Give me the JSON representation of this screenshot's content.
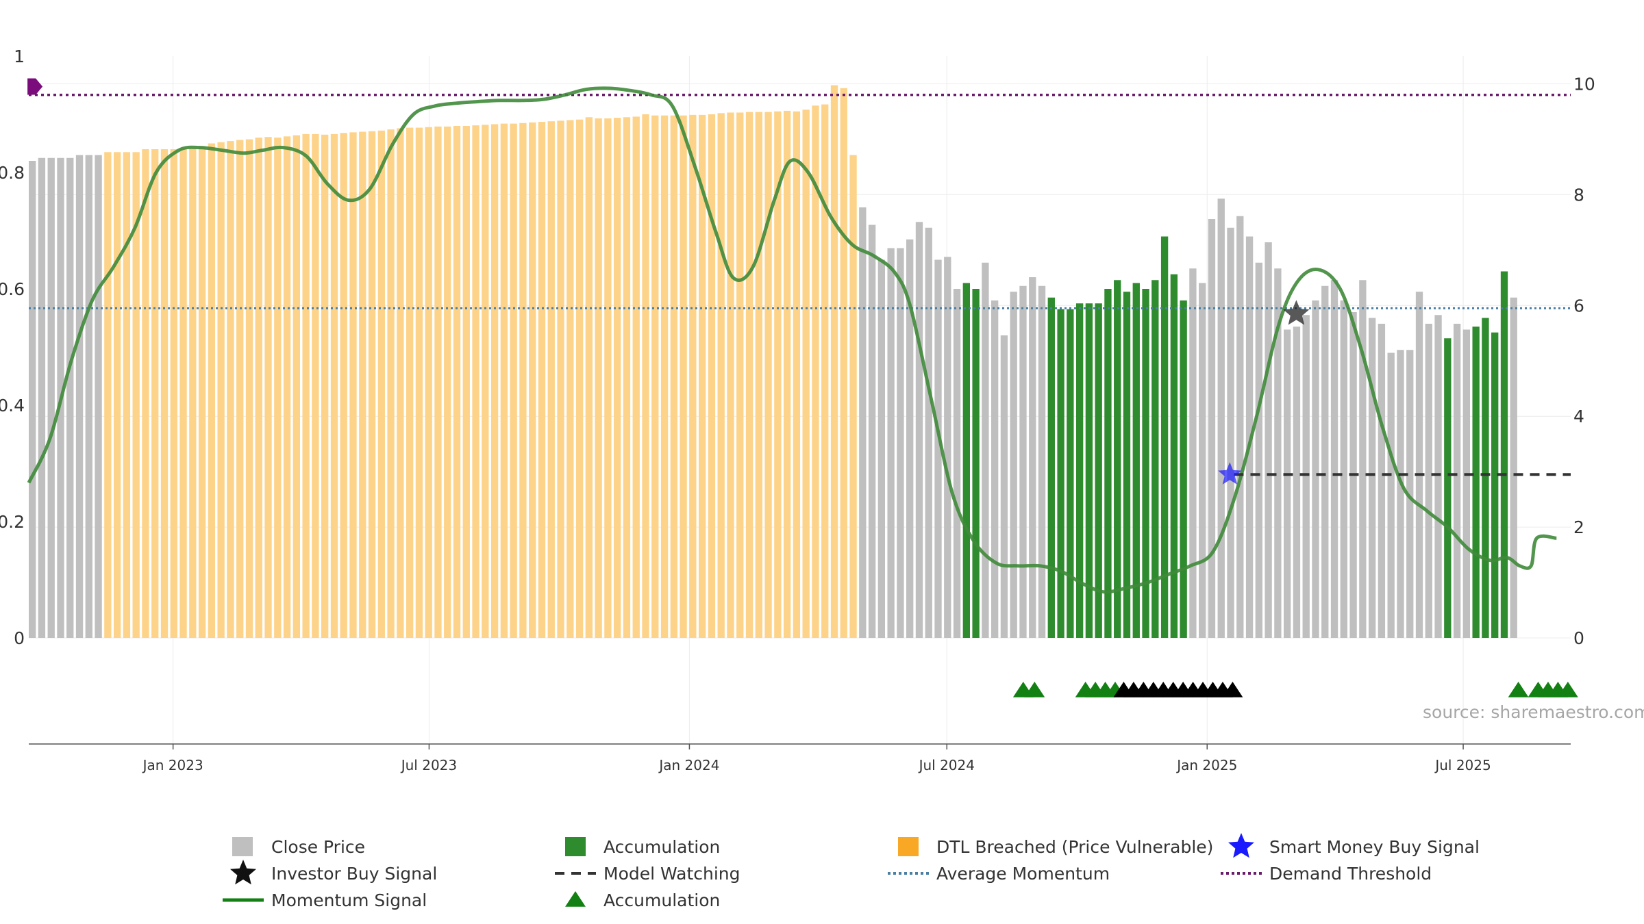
{
  "chart_data": {
    "type": "bar",
    "x_range": [
      "2022-09-21",
      "2025-09-15"
    ],
    "x_ticks": [
      {
        "date": "2023-01-01",
        "label": "Jan 2023"
      },
      {
        "date": "2023-07-01",
        "label": "Jul 2023"
      },
      {
        "date": "2024-01-01",
        "label": "Jan 2024"
      },
      {
        "date": "2024-07-01",
        "label": "Jul 2024"
      },
      {
        "date": "2025-01-01",
        "label": "Jan 2025"
      },
      {
        "date": "2025-07-01",
        "label": "Jul 2025"
      }
    ],
    "y_left": {
      "range": [
        0,
        1.0
      ],
      "ticks": [
        {
          "v": 0,
          "label": "0"
        },
        {
          "v": 0.2,
          "label": "0.2"
        },
        {
          "v": 0.4,
          "label": "0.4"
        },
        {
          "v": 0.6,
          "label": "0.6"
        },
        {
          "v": 0.8,
          "label": "0.8"
        },
        {
          "v": 1.0,
          "label": "1"
        }
      ]
    },
    "y_right": {
      "range": [
        0,
        10.5
      ],
      "ticks": [
        {
          "v": 0,
          "label": "0"
        },
        {
          "v": 2,
          "label": "2"
        },
        {
          "v": 4,
          "label": "4"
        },
        {
          "v": 6,
          "label": "6"
        },
        {
          "v": 8,
          "label": "8"
        },
        {
          "v": 10,
          "label": "10"
        }
      ]
    },
    "bar_start": "2022-09-21",
    "bar_step_days": 6.67,
    "bar_width_days": 5.0,
    "price": [
      0.82,
      0.825,
      0.825,
      0.825,
      0.825,
      0.83,
      0.83,
      0.83,
      0.835,
      0.835,
      0.835,
      0.835,
      0.84,
      0.84,
      0.84,
      0.84,
      0.842,
      0.842,
      0.845,
      0.85,
      0.852,
      0.854,
      0.856,
      0.857,
      0.86,
      0.861,
      0.86,
      0.862,
      0.864,
      0.866,
      0.866,
      0.865,
      0.866,
      0.868,
      0.869,
      0.87,
      0.871,
      0.872,
      0.874,
      0.876,
      0.877,
      0.877,
      0.878,
      0.879,
      0.879,
      0.88,
      0.88,
      0.881,
      0.882,
      0.883,
      0.884,
      0.884,
      0.885,
      0.886,
      0.887,
      0.888,
      0.889,
      0.89,
      0.891,
      0.895,
      0.893,
      0.893,
      0.894,
      0.895,
      0.896,
      0.9,
      0.898,
      0.898,
      0.898,
      0.898,
      0.899,
      0.899,
      0.9,
      0.902,
      0.903,
      0.903,
      0.904,
      0.904,
      0.904,
      0.905,
      0.906,
      0.905,
      0.908,
      0.915,
      0.917,
      0.95,
      0.945,
      0.83,
      0.74,
      0.71,
      0.65,
      0.67,
      0.67,
      0.685,
      0.715,
      0.705,
      0.65,
      0.655,
      0.6,
      0.61,
      0.6,
      0.645,
      0.58,
      0.52,
      0.595,
      0.605,
      0.62,
      0.605,
      0.585,
      0.565,
      0.565,
      0.575,
      0.575,
      0.575,
      0.6,
      0.615,
      0.595,
      0.61,
      0.6,
      0.615,
      0.69,
      0.625,
      0.58,
      0.635,
      0.61,
      0.72,
      0.755,
      0.705,
      0.725,
      0.69,
      0.645,
      0.68,
      0.635,
      0.53,
      0.535,
      0.555,
      0.58,
      0.605,
      0.615,
      0.58,
      0.56,
      0.615,
      0.55,
      0.54,
      0.49,
      0.495,
      0.495,
      0.595,
      0.54,
      0.555,
      0.515,
      0.54,
      0.53,
      0.535,
      0.55,
      0.525,
      0.63,
      0.585
    ],
    "dtl_breached_bars": [
      [
        8,
        87
      ]
    ],
    "accumulation_bars": [
      99,
      100,
      108,
      109,
      110,
      111,
      112,
      113,
      114,
      115,
      116,
      117,
      118,
      119,
      120,
      121,
      122,
      150,
      153,
      154,
      155,
      156
    ],
    "momentum": [
      [
        "2022-09-21",
        2.8
      ],
      [
        "2022-10-06",
        3.6
      ],
      [
        "2022-10-21",
        5.0
      ],
      [
        "2022-11-05",
        6.1
      ],
      [
        "2022-11-20",
        6.7
      ],
      [
        "2022-12-05",
        7.4
      ],
      [
        "2022-12-20",
        8.4
      ],
      [
        "2023-01-05",
        8.8
      ],
      [
        "2023-01-20",
        8.85
      ],
      [
        "2023-02-05",
        8.8
      ],
      [
        "2023-02-20",
        8.75
      ],
      [
        "2023-03-05",
        8.8
      ],
      [
        "2023-03-20",
        8.85
      ],
      [
        "2023-04-05",
        8.7
      ],
      [
        "2023-04-20",
        8.2
      ],
      [
        "2023-05-05",
        7.9
      ],
      [
        "2023-05-20",
        8.1
      ],
      [
        "2023-06-05",
        8.9
      ],
      [
        "2023-06-20",
        9.45
      ],
      [
        "2023-07-05",
        9.6
      ],
      [
        "2023-07-20",
        9.65
      ],
      [
        "2023-08-05",
        9.68
      ],
      [
        "2023-08-20",
        9.7
      ],
      [
        "2023-09-05",
        9.7
      ],
      [
        "2023-09-20",
        9.72
      ],
      [
        "2023-10-05",
        9.8
      ],
      [
        "2023-10-20",
        9.9
      ],
      [
        "2023-11-05",
        9.92
      ],
      [
        "2023-11-20",
        9.88
      ],
      [
        "2023-12-05",
        9.8
      ],
      [
        "2023-12-20",
        9.6
      ],
      [
        "2024-01-05",
        8.5
      ],
      [
        "2024-01-20",
        7.3
      ],
      [
        "2024-02-01",
        6.5
      ],
      [
        "2024-02-15",
        6.7
      ],
      [
        "2024-03-01",
        7.9
      ],
      [
        "2024-03-12",
        8.6
      ],
      [
        "2024-03-25",
        8.4
      ],
      [
        "2024-04-10",
        7.6
      ],
      [
        "2024-04-25",
        7.1
      ],
      [
        "2024-05-10",
        6.9
      ],
      [
        "2024-05-25",
        6.6
      ],
      [
        "2024-06-05",
        6.0
      ],
      [
        "2024-06-20",
        4.3
      ],
      [
        "2024-07-05",
        2.6
      ],
      [
        "2024-07-20",
        1.75
      ],
      [
        "2024-08-05",
        1.35
      ],
      [
        "2024-08-20",
        1.3
      ],
      [
        "2024-09-05",
        1.3
      ],
      [
        "2024-09-20",
        1.2
      ],
      [
        "2024-10-05",
        0.98
      ],
      [
        "2024-10-20",
        0.83
      ],
      [
        "2024-11-05",
        0.9
      ],
      [
        "2024-11-20",
        1.0
      ],
      [
        "2024-12-05",
        1.15
      ],
      [
        "2024-12-20",
        1.3
      ],
      [
        "2025-01-05",
        1.55
      ],
      [
        "2025-01-20",
        2.5
      ],
      [
        "2025-02-05",
        4.0
      ],
      [
        "2025-02-20",
        5.6
      ],
      [
        "2025-03-05",
        6.4
      ],
      [
        "2025-03-20",
        6.65
      ],
      [
        "2025-04-05",
        6.3
      ],
      [
        "2025-04-20",
        5.2
      ],
      [
        "2025-05-05",
        3.8
      ],
      [
        "2025-05-20",
        2.7
      ],
      [
        "2025-06-05",
        2.3
      ],
      [
        "2025-06-20",
        2.0
      ],
      [
        "2025-07-05",
        1.6
      ],
      [
        "2025-07-20",
        1.4
      ],
      [
        "2025-08-01",
        1.45
      ],
      [
        "2025-08-10",
        1.3
      ],
      [
        "2025-08-18",
        1.3
      ],
      [
        "2025-08-22",
        1.8
      ],
      [
        "2025-09-05",
        1.8
      ]
    ],
    "average_momentum": 5.95,
    "demand_threshold": 9.8,
    "model_watching": {
      "start": "2025-01-20",
      "end": "2025-09-15",
      "value": 2.95
    },
    "smart_money_buy_signal": {
      "date": "2025-01-17",
      "value": 2.95
    },
    "investor_buy_signal": {
      "date": "2025-03-05",
      "value": 5.85
    },
    "demand_marker": {
      "date": "2022-09-23",
      "value": 9.95,
      "color": "#7b0c7b"
    },
    "accumulation_markers_green": [
      "2024-08-24",
      "2024-09-01",
      "2024-10-07",
      "2024-10-14",
      "2024-10-21",
      "2024-10-28",
      "2025-08-09",
      "2025-08-23",
      "2025-08-30",
      "2025-09-06",
      "2025-09-13"
    ],
    "accumulation_markers_black": [
      "2024-11-03",
      "2024-11-10",
      "2024-11-17",
      "2024-11-24",
      "2024-12-01",
      "2024-12-08",
      "2024-12-15",
      "2024-12-22",
      "2024-12-29",
      "2025-01-05",
      "2025-01-12",
      "2025-01-19"
    ],
    "source": "source: sharemaestro.com",
    "legend": [
      {
        "key": "close",
        "label": "Close Price"
      },
      {
        "key": "accum_bar",
        "label": "Accumulation"
      },
      {
        "key": "dtl",
        "label": "DTL Breached (Price Vulnerable)"
      },
      {
        "key": "smart",
        "label": "Smart Money Buy Signal"
      },
      {
        "key": "investor",
        "label": "Investor Buy Signal"
      },
      {
        "key": "watching",
        "label": "Model Watching"
      },
      {
        "key": "avg",
        "label": "Average Momentum"
      },
      {
        "key": "demand",
        "label": "Demand Threshold"
      },
      {
        "key": "momentum",
        "label": "Momentum Signal"
      },
      {
        "key": "accum_tri",
        "label": "Accumulation"
      }
    ]
  },
  "colors": {
    "close": "#bfbfbf",
    "dtl": "#fdd38a",
    "accumulation": "#2e8b2e",
    "momentum": "#3f8a3a",
    "average": "#4a7fa3",
    "demand": "#6b1b6b",
    "watching": "#333333",
    "smart": "#1a1aff",
    "investor": "#111111",
    "triangle_green": "#128012",
    "triangle_black": "#000000"
  }
}
